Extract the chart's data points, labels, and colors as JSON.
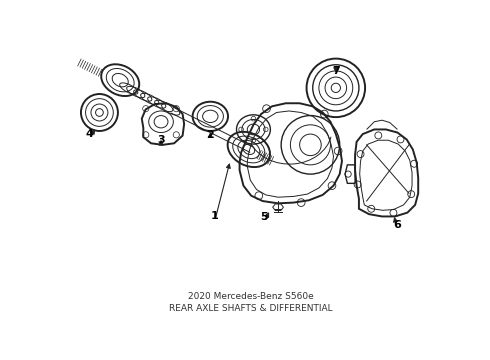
{
  "title": "2020 Mercedes-Benz S560e\nREAR AXLE SHAFTS & DIFFERENTIAL",
  "background_color": "#ffffff",
  "line_color": "#222222",
  "label_color": "#000000",
  "figsize": [
    4.9,
    3.6
  ],
  "dpi": 100
}
